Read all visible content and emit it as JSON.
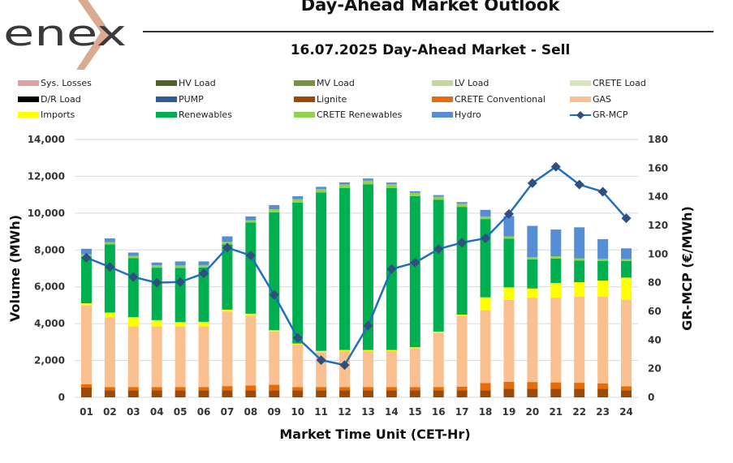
{
  "header": {
    "logo_text": "enex",
    "title": "Day-Ahead Market Outlook",
    "subtitle": "16.07.2025  Day-Ahead Market - Sell"
  },
  "colors": {
    "logo_text": "#3a3a3a",
    "logo_chevron": "#d9ab91",
    "gridline": "#d9d9d9",
    "mcp_line": "#1f6fbf",
    "mcp_marker": "#2f4f7f"
  },
  "legend": [
    {
      "name": "Sys. Losses",
      "color": "#e0a0a0",
      "type": "bar"
    },
    {
      "name": "HV Load",
      "color": "#4f6228",
      "type": "bar"
    },
    {
      "name": "MV Load",
      "color": "#77933c",
      "type": "bar"
    },
    {
      "name": "LV Load",
      "color": "#c3d69b",
      "type": "bar"
    },
    {
      "name": "CRETE Load",
      "color": "#d7e4bd",
      "type": "bar"
    },
    {
      "name": "D/R Load",
      "color": "#000000",
      "type": "bar"
    },
    {
      "name": "PUMP",
      "color": "#2e5c99",
      "type": "bar"
    },
    {
      "name": "Lignite",
      "color": "#9c4a06",
      "type": "bar"
    },
    {
      "name": "CRETE Conventional",
      "color": "#e46c0a",
      "type": "bar"
    },
    {
      "name": "GAS",
      "color": "#fac090",
      "type": "bar"
    },
    {
      "name": "Imports",
      "color": "#ffff00",
      "type": "bar"
    },
    {
      "name": "Renewables",
      "color": "#00b050",
      "type": "bar"
    },
    {
      "name": "CRETE Renewables",
      "color": "#92d050",
      "type": "bar"
    },
    {
      "name": "Hydro",
      "color": "#558ed5",
      "type": "bar"
    },
    {
      "name": "GR-MCP",
      "color": "#1f6fbf",
      "type": "line"
    }
  ],
  "chart_data": {
    "type": "bar",
    "stacked": true,
    "title": "16.07.2025  Day-Ahead Market - Sell",
    "xlabel": "Market Time Unit (CET-Hr)",
    "ylabel": "Volume (MWh)",
    "y2label": "GR-MCP (€/MWh)",
    "ylim": [
      0,
      14000
    ],
    "y2lim": [
      0,
      180
    ],
    "yticks": [
      "0",
      "2,000",
      "4,000",
      "6,000",
      "8,000",
      "10,000",
      "12,000",
      "14,000"
    ],
    "y2ticks": [
      "0",
      "20",
      "40",
      "60",
      "80",
      "100",
      "120",
      "140",
      "160",
      "180"
    ],
    "grid": true,
    "legend_position": "top",
    "categories": [
      "01",
      "02",
      "03",
      "04",
      "05",
      "06",
      "07",
      "08",
      "09",
      "10",
      "11",
      "12",
      "13",
      "14",
      "15",
      "16",
      "17",
      "18",
      "19",
      "20",
      "21",
      "22",
      "23",
      "24"
    ],
    "series": [
      {
        "name": "Lignite",
        "values": [
          530,
          380,
          380,
          380,
          380,
          380,
          380,
          380,
          380,
          380,
          380,
          380,
          380,
          380,
          380,
          380,
          380,
          380,
          460,
          460,
          460,
          460,
          460,
          380
        ]
      },
      {
        "name": "CRETE Conventional",
        "values": [
          175,
          170,
          170,
          170,
          170,
          170,
          230,
          260,
          300,
          180,
          180,
          180,
          180,
          180,
          180,
          180,
          200,
          400,
          380,
          370,
          350,
          330,
          300,
          220
        ]
      },
      {
        "name": "GAS",
        "values": [
          4300,
          3800,
          3300,
          3300,
          3300,
          3300,
          4050,
          3800,
          2900,
          2300,
          1900,
          1950,
          1950,
          1950,
          2100,
          2950,
          3850,
          3950,
          4450,
          4580,
          4600,
          4680,
          4710,
          4700
        ]
      },
      {
        "name": "Imports",
        "values": [
          100,
          250,
          500,
          340,
          230,
          250,
          100,
          100,
          60,
          60,
          60,
          60,
          60,
          60,
          60,
          60,
          60,
          700,
          680,
          500,
          800,
          780,
          870,
          1200
        ]
      },
      {
        "name": "Renewables",
        "values": [
          2530,
          3700,
          3200,
          2850,
          2950,
          2950,
          3550,
          4950,
          6400,
          7650,
          8600,
          8800,
          9000,
          8800,
          8200,
          7150,
          5850,
          4250,
          2650,
          1580,
          1330,
          1180,
          1070,
          900
        ]
      },
      {
        "name": "CRETE Renewables",
        "values": [
          130,
          130,
          130,
          130,
          130,
          130,
          130,
          130,
          170,
          180,
          180,
          190,
          200,
          200,
          180,
          170,
          170,
          140,
          120,
          120,
          120,
          120,
          120,
          110
        ]
      },
      {
        "name": "Hydro",
        "values": [
          300,
          200,
          180,
          150,
          220,
          200,
          300,
          200,
          230,
          170,
          130,
          110,
          110,
          90,
          90,
          90,
          90,
          360,
          1100,
          1700,
          1450,
          1680,
          1060,
          580
        ]
      }
    ],
    "line_series": {
      "name": "GR-MCP",
      "axis": "right",
      "values": [
        97.5,
        91,
        84,
        80,
        80.5,
        86.5,
        104.5,
        99,
        71.5,
        41.5,
        26,
        22.5,
        50,
        89.5,
        94,
        103.5,
        108,
        111,
        128,
        149.5,
        161,
        148.5,
        143.5,
        125
      ]
    }
  }
}
